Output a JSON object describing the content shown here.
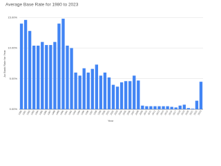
{
  "chart_data": {
    "type": "bar",
    "title": "Average Base Rate for 1980 to 2023",
    "x_label": "Year",
    "y_label": "Av Bank Rate for Year",
    "categories": [
      "1980",
      "1981",
      "1982",
      "1983",
      "1984",
      "1985",
      "1986",
      "1987",
      "1988",
      "1989",
      "1990",
      "1991",
      "1992",
      "1993",
      "1994",
      "1995",
      "1996",
      "1997",
      "1998",
      "1999",
      "2000",
      "2001",
      "2002",
      "2003",
      "2004",
      "2005",
      "2006",
      "2007",
      "2008",
      "2009",
      "2010",
      "2011",
      "2012",
      "2013",
      "2014",
      "2015",
      "2016",
      "2017",
      "2018",
      "2019",
      "2020",
      "2021",
      "2022",
      "2023"
    ],
    "values": [
      14.0,
      14.6,
      12.8,
      10.4,
      10.4,
      11.0,
      10.5,
      10.5,
      11.0,
      14.0,
      14.8,
      10.4,
      10.0,
      6.0,
      5.5,
      6.7,
      6.0,
      6.6,
      7.3,
      5.5,
      6.0,
      5.2,
      4.0,
      3.7,
      4.4,
      4.6,
      4.6,
      5.5,
      4.7,
      0.6,
      0.5,
      0.5,
      0.5,
      0.5,
      0.5,
      0.5,
      0.4,
      0.3,
      0.6,
      0.75,
      0.2,
      0.1,
      1.4,
      4.5
    ],
    "color": "#4285f4",
    "ylim": [
      0,
      16.5
    ],
    "yticks": [
      {
        "value": 0,
        "label": "0.00%"
      },
      {
        "value": 5,
        "label": "5.00%"
      },
      {
        "value": 10,
        "label": "10.00%"
      },
      {
        "value": 15,
        "label": "15.00%"
      }
    ],
    "grid": true
  }
}
